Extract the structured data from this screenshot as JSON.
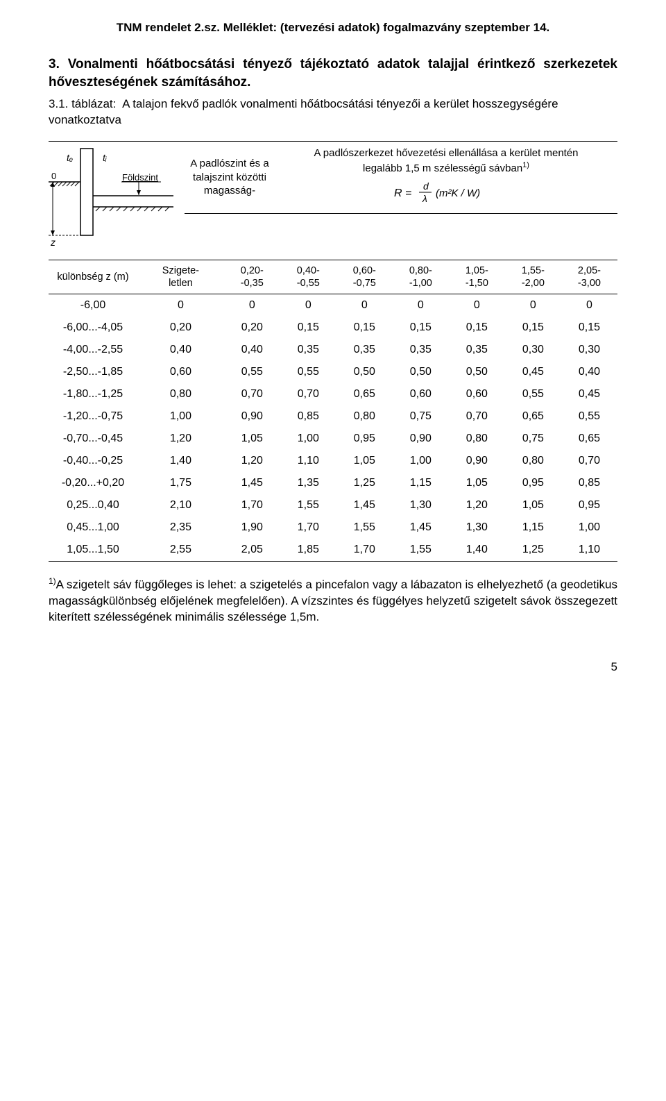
{
  "header": "TNM rendelet 2.sz. Melléklet: (tervezési adatok) fogalmazvány szeptember 14.",
  "section_title": "3. Vonalmenti hőátbocsátási tényező tájékoztató adatok talajjal érintkező szerkezetek hőveszteségének számításához.",
  "caption_num": "3.1. táblázat:",
  "caption_text": "A talajon fekvő padlók vonalmenti hőátbocsátási tényezői a kerület hosszegységére  vonatkoztatva",
  "diagram_labels": {
    "te": "tₑ",
    "ti": "tᵢ",
    "foldszint": "Földszint",
    "zero": "0",
    "z": "z"
  },
  "header_left": "A padlószint és a talajszint közötti magasság-",
  "header_right_line1": "A padlószerkezet hővezetési ellenállása a kerület mentén",
  "header_right_line2": "legalább 1,5 m szélességű sávban",
  "header_right_sup": "1)",
  "formula_text": "R = d / λ  (m²K / W)",
  "sub_left": "különbség z (m)",
  "columns": [
    "Szigete-\nletlen",
    "0,20-\n-0,35",
    "0,40-\n-0,55",
    "0,60-\n-0,75",
    "0,80-\n-1,00",
    "1,05-\n-1,50",
    "1,55-\n-2,00",
    "2,05-\n-3,00"
  ],
  "rows": [
    {
      "label": "-6,00",
      "vals": [
        "0",
        "0",
        "0",
        "0",
        "0",
        "0",
        "0",
        "0"
      ]
    },
    {
      "label": "-6,00...-4,05",
      "vals": [
        "0,20",
        "0,20",
        "0,15",
        "0,15",
        "0,15",
        "0,15",
        "0,15",
        "0,15"
      ]
    },
    {
      "label": "-4,00...-2,55",
      "vals": [
        "0,40",
        "0,40",
        "0,35",
        "0,35",
        "0,35",
        "0,35",
        "0,30",
        "0,30"
      ]
    },
    {
      "label": "-2,50...-1,85",
      "vals": [
        "0,60",
        "0,55",
        "0,55",
        "0,50",
        "0,50",
        "0,50",
        "0,45",
        "0,40"
      ]
    },
    {
      "label": "-1,80...-1,25",
      "vals": [
        "0,80",
        "0,70",
        "0,70",
        "0,65",
        "0,60",
        "0,60",
        "0,55",
        "0,45"
      ]
    },
    {
      "label": "-1,20...-0,75",
      "vals": [
        "1,00",
        "0,90",
        "0,85",
        "0,80",
        "0,75",
        "0,70",
        "0,65",
        "0,55"
      ]
    },
    {
      "label": "-0,70...-0,45",
      "vals": [
        "1,20",
        "1,05",
        "1,00",
        "0,95",
        "0,90",
        "0,80",
        "0,75",
        "0,65"
      ]
    },
    {
      "label": "-0,40...-0,25",
      "vals": [
        "1,40",
        "1,20",
        "1,10",
        "1,05",
        "1,00",
        "0,90",
        "0,80",
        "0,70"
      ]
    },
    {
      "label": "-0,20...+0,20",
      "vals": [
        "1,75",
        "1,45",
        "1,35",
        "1,25",
        "1,15",
        "1,05",
        "0,95",
        "0,85"
      ]
    },
    {
      "label": "0,25...0,40",
      "vals": [
        "2,10",
        "1,70",
        "1,55",
        "1,45",
        "1,30",
        "1,20",
        "1,05",
        "0,95"
      ]
    },
    {
      "label": "0,45...1,00",
      "vals": [
        "2,35",
        "1,90",
        "1,70",
        "1,55",
        "1,45",
        "1,30",
        "1,15",
        "1,00"
      ]
    },
    {
      "label": "1,05...1,50",
      "vals": [
        "2,55",
        "2,05",
        "1,85",
        "1,70",
        "1,55",
        "1,40",
        "1,25",
        "1,10"
      ]
    }
  ],
  "footnote_sup": "1)",
  "footnote_text": "A szigetelt sáv függőleges is lehet: a szigetelés a pincefalon vagy a lábazaton is elhelyezhető (a geodetikus magasságkülönbség előjelének megfelelően). A vízszintes és függélyes helyzetű szigetelt sávok összegezett kiterített szélességének minimális szélessége 1,5m.",
  "page_number": "5",
  "colors": {
    "text": "#000000",
    "bg": "#ffffff",
    "rule": "#000000"
  }
}
